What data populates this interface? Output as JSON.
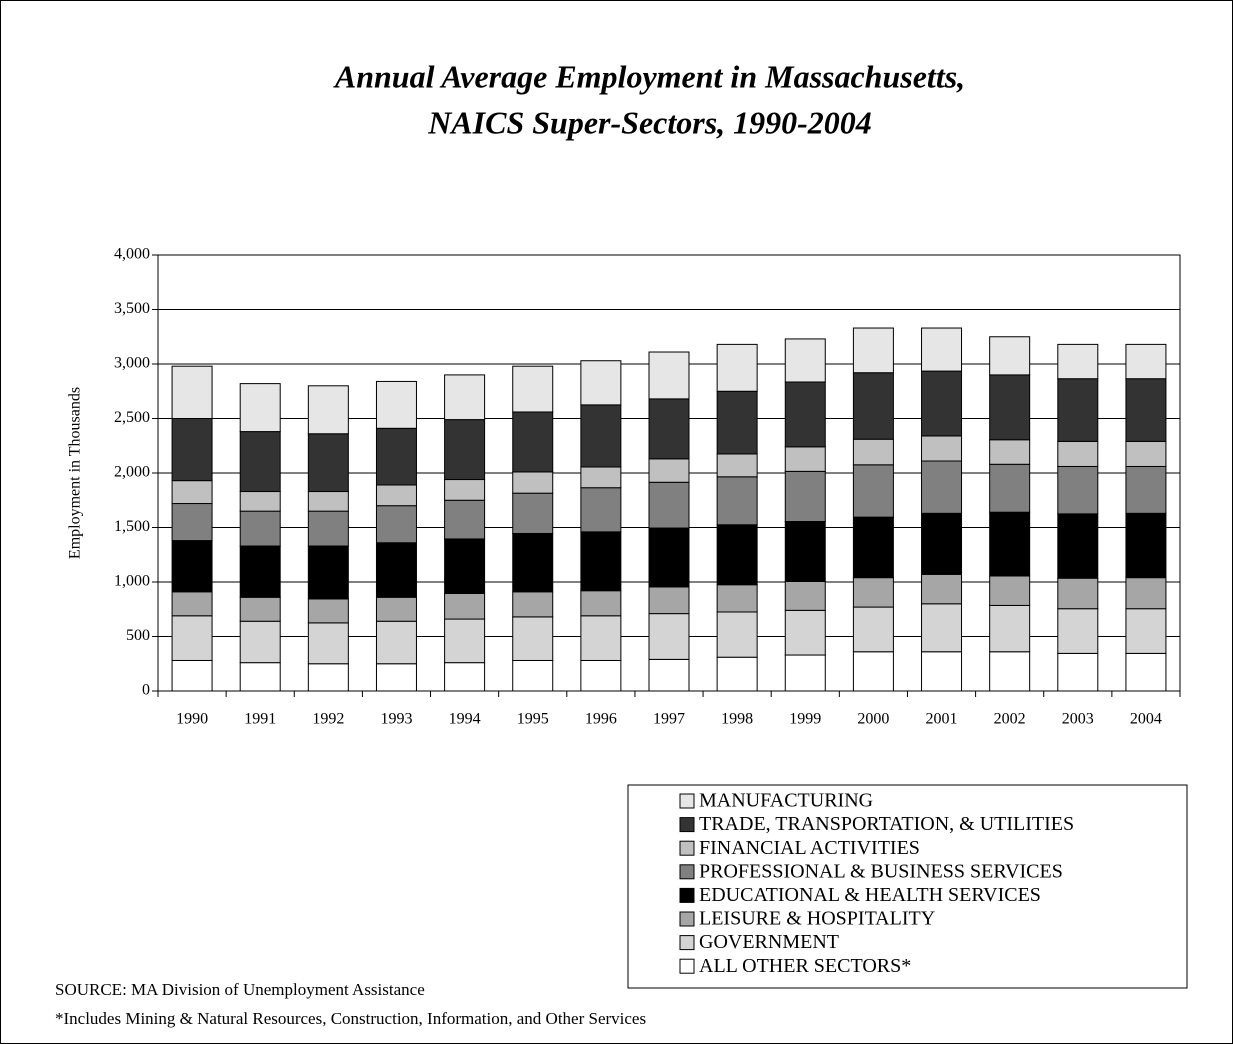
{
  "chart_data": {
    "type": "stacked-bar",
    "title": "Annual Average Employment in Massachusetts,",
    "subtitle": "NAICS Super-Sectors, 1990-2004",
    "y_label": "Employment in Thousands",
    "categories": [
      "1990",
      "1991",
      "1992",
      "1993",
      "1994",
      "1995",
      "1996",
      "1997",
      "1998",
      "1999",
      "2000",
      "2001",
      "2002",
      "2003",
      "2004"
    ],
    "series": [
      {
        "name": "MANUFACTURING",
        "color": "#e6e6e6",
        "values": [
          480,
          440,
          440,
          430,
          410,
          420,
          405,
          430,
          430,
          395,
          410,
          395,
          350,
          315,
          315
        ]
      },
      {
        "name": "TRADE, TRANSPORTATION, & UTILITIES",
        "color": "#333333",
        "values": [
          570,
          550,
          530,
          520,
          550,
          550,
          570,
          550,
          575,
          595,
          610,
          595,
          595,
          575,
          575
        ]
      },
      {
        "name": "FINANCIAL ACTIVITIES",
        "color": "#c0c0c0",
        "values": [
          210,
          180,
          180,
          190,
          190,
          195,
          190,
          215,
          210,
          225,
          235,
          230,
          225,
          230,
          230
        ]
      },
      {
        "name": "PROFESSIONAL & BUSINESS SERVICES",
        "color": "#808080",
        "values": [
          340,
          320,
          320,
          340,
          355,
          370,
          405,
          420,
          440,
          460,
          480,
          480,
          440,
          435,
          430
        ]
      },
      {
        "name": "EDUCATIONAL & HEALTH SERVICES",
        "color": "#000000",
        "values": [
          470,
          470,
          485,
          500,
          500,
          535,
          540,
          540,
          550,
          550,
          555,
          560,
          585,
          590,
          590
        ]
      },
      {
        "name": "LEISURE & HOSPITALITY",
        "color": "#a6a6a6",
        "values": [
          220,
          220,
          220,
          220,
          235,
          230,
          230,
          245,
          250,
          265,
          270,
          270,
          270,
          280,
          285
        ]
      },
      {
        "name": "GOVERNMENT",
        "color": "#d4d4d4",
        "values": [
          410,
          380,
          375,
          390,
          400,
          400,
          410,
          420,
          415,
          410,
          410,
          440,
          425,
          410,
          410
        ]
      },
      {
        "name": "ALL OTHER SECTORS*",
        "color": "#ffffff",
        "values": [
          280,
          260,
          250,
          250,
          260,
          280,
          280,
          290,
          310,
          330,
          360,
          360,
          360,
          345,
          345
        ]
      }
    ],
    "ylim": [
      0,
      4000
    ],
    "yticks": [
      0,
      500,
      {
        "value": 1000,
        "label": "1,000"
      },
      {
        "value": 1500,
        "label": "1,500"
      },
      {
        "value": 2000,
        "label": "2,000"
      },
      {
        "value": 2500,
        "label": "2,500"
      },
      {
        "value": 3000,
        "label": "3,000"
      },
      {
        "value": 3500,
        "label": "3,500"
      },
      {
        "value": 4000,
        "label": "4,000"
      }
    ],
    "grid": true,
    "legend": "bottom-right",
    "source": "SOURCE:  MA Division of Unemployment Assistance",
    "footnote": "*Includes Mining & Natural Resources, Construction, Information, and Other Services"
  }
}
